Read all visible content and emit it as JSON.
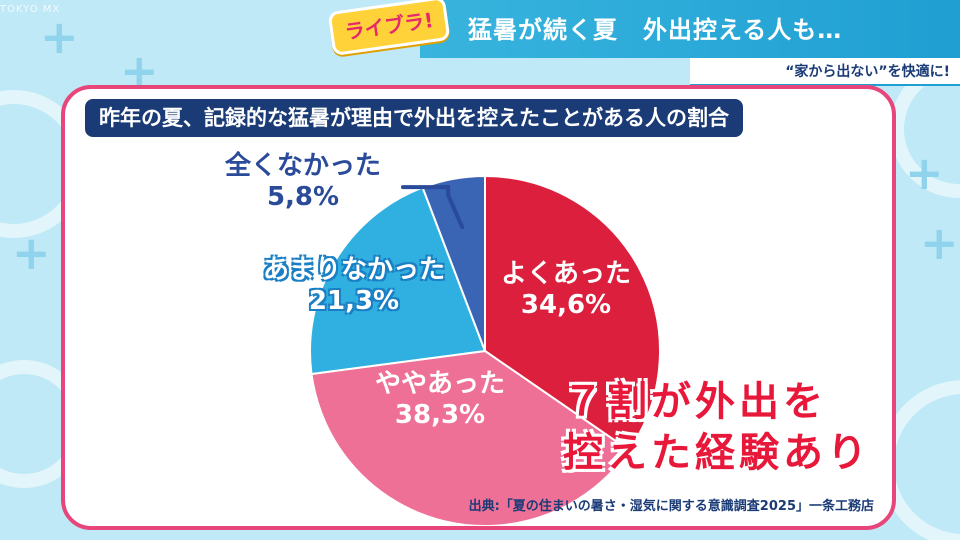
{
  "broadcast": {
    "watermark": "TOKYO MX",
    "logo": "ライブラ!",
    "headline": "猛暑が続く夏　外出控える人も…",
    "subheadline": "“家から出ない”を快適に!"
  },
  "colors": {
    "panel_border": "#e8457a",
    "title_bg": "#1b3b76",
    "callout": "#e8183a"
  },
  "chart_data": {
    "type": "pie",
    "title": "昨年の夏、記録的な猛暑が理由で外出を控えたことがある人の割合",
    "slices": [
      {
        "label": "よくあった",
        "value": 34.6,
        "value_text": "34,6%",
        "color": "#dc1f3c"
      },
      {
        "label": "ややあった",
        "value": 38.3,
        "value_text": "38,3%",
        "color": "#ef7096"
      },
      {
        "label": "あまりなかった",
        "value": 21.3,
        "value_text": "21,3%",
        "color": "#2fb0e0"
      },
      {
        "label": "全くなかった",
        "value": 5.8,
        "value_text": "5,8%",
        "color": "#3a64b4"
      }
    ],
    "start_angle_deg": 0,
    "direction": "clockwise"
  },
  "callout": {
    "line1": "７割が外出を",
    "line2": "控えた経験あり"
  },
  "source": "出典:「夏の住まいの暑さ・湿気に関する意識調査2025」一条工務店"
}
